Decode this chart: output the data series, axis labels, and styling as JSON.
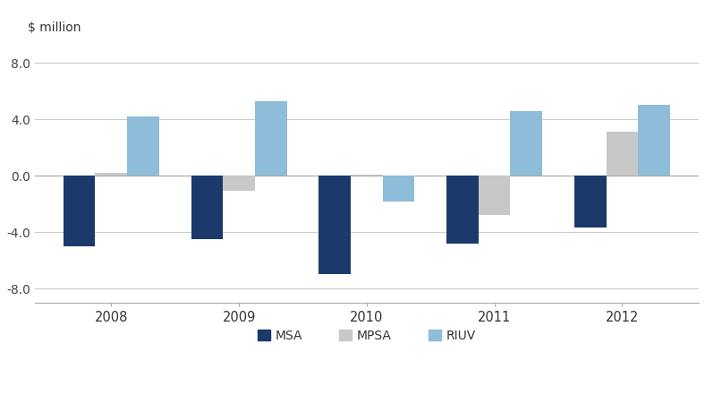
{
  "years": [
    "2008",
    "2009",
    "2010",
    "2011",
    "2012"
  ],
  "MSA": [
    -5.0,
    -4.5,
    -7.0,
    -4.8,
    -3.7
  ],
  "MPSA": [
    0.2,
    -1.1,
    0.1,
    -2.8,
    3.1
  ],
  "RIUV": [
    4.2,
    5.3,
    -1.8,
    4.6,
    5.0
  ],
  "msa_color": "#1b3a6b",
  "mpsa_color": "#c8c8c8",
  "riuv_color": "#8dbdd8",
  "ylabel": "$ million",
  "ylim": [
    -9.0,
    9.0
  ],
  "yticks": [
    -8.0,
    -4.0,
    0.0,
    4.0,
    8.0
  ],
  "bar_width": 0.25,
  "background_color": "#ffffff",
  "grid_color": "#cccccc",
  "legend_labels": [
    "MSA",
    "MPSA",
    "RIUV"
  ]
}
